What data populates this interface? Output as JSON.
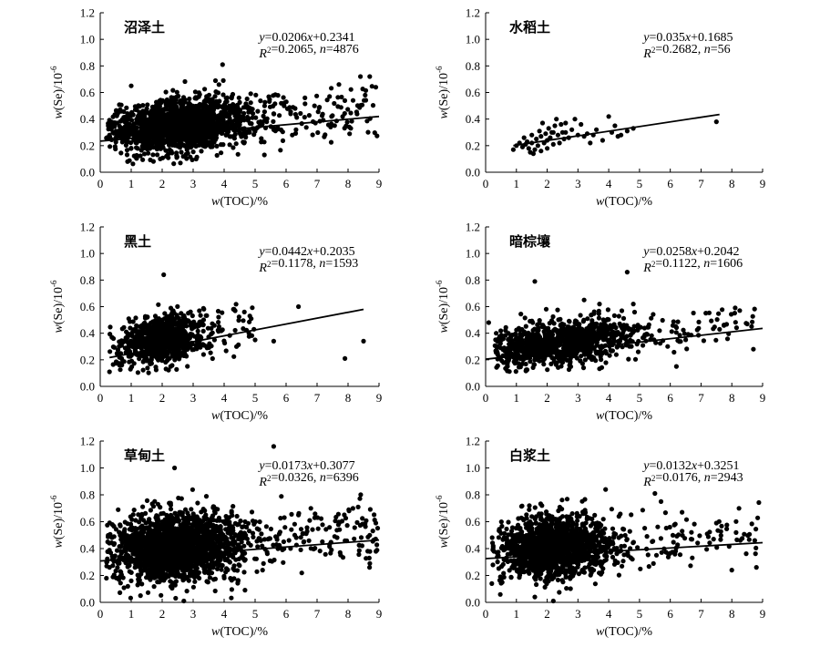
{
  "chart_data": [
    {
      "type": "scatter",
      "title": "沼泽土",
      "equation": "y=0.0206x+0.2341",
      "stats": "R²=0.2065, n=4876",
      "xlabel": "w(TOC)/%",
      "ylabel": "w(Se)/10⁻⁶",
      "xlim": [
        0,
        9
      ],
      "ylim": [
        0,
        1.2
      ],
      "xticks": [
        0,
        1,
        2,
        3,
        4,
        5,
        6,
        7,
        8,
        9
      ],
      "yticks": [
        0.0,
        0.2,
        0.4,
        0.6,
        0.8,
        1.0,
        1.2
      ],
      "fit": {
        "slope": 0.0206,
        "intercept": 0.2341,
        "x_start": 0,
        "x_end": 9
      },
      "n_points": 4876,
      "cloud": {
        "x_center": 2.5,
        "x_sd": 1.1,
        "x_min": 0.2,
        "x_max": 9.0,
        "y_resid_sd": 0.1,
        "y_min": 0.05,
        "y_max": 0.72,
        "shown": 1800
      },
      "points": [
        [
          3.95,
          0.81
        ],
        [
          1.0,
          0.65
        ],
        [
          8.4,
          0.72
        ],
        [
          8.7,
          0.72
        ],
        [
          0.9,
          0.23
        ],
        [
          0.3,
          0.28
        ],
        [
          6.2,
          0.28
        ],
        [
          5.3,
          0.13
        ]
      ]
    },
    {
      "type": "scatter",
      "title": "水稻土",
      "equation": "y=0.035x+0.1685",
      "stats": "R²=0.2682, n=56",
      "xlabel": "w(TOC)/%",
      "ylabel": "w(Se)/10⁻⁶",
      "xlim": [
        0,
        9
      ],
      "ylim": [
        0,
        1.2
      ],
      "xticks": [
        0,
        1,
        2,
        3,
        4,
        5,
        6,
        7,
        8,
        9
      ],
      "yticks": [
        0.0,
        0.2,
        0.4,
        0.6,
        0.8,
        1.0,
        1.2
      ],
      "fit": {
        "slope": 0.035,
        "intercept": 0.1685,
        "x_start": 0.9,
        "x_end": 7.6
      },
      "n_points": 56,
      "cloud": null,
      "points": [
        [
          0.9,
          0.17
        ],
        [
          1.0,
          0.2
        ],
        [
          1.1,
          0.22
        ],
        [
          1.2,
          0.19
        ],
        [
          1.3,
          0.21
        ],
        [
          1.4,
          0.18
        ],
        [
          1.45,
          0.15
        ],
        [
          1.5,
          0.22
        ],
        [
          1.55,
          0.14
        ],
        [
          1.6,
          0.17
        ],
        [
          1.65,
          0.25
        ],
        [
          1.7,
          0.2
        ],
        [
          1.75,
          0.31
        ],
        [
          1.8,
          0.27
        ],
        [
          1.85,
          0.37
        ],
        [
          1.9,
          0.22
        ],
        [
          1.95,
          0.29
        ],
        [
          2.0,
          0.18
        ],
        [
          2.05,
          0.33
        ],
        [
          2.1,
          0.26
        ],
        [
          2.15,
          0.3
        ],
        [
          2.2,
          0.21
        ],
        [
          2.25,
          0.35
        ],
        [
          2.3,
          0.4
        ],
        [
          2.35,
          0.28
        ],
        [
          2.4,
          0.22
        ],
        [
          2.45,
          0.36
        ],
        [
          2.5,
          0.3
        ],
        [
          2.55,
          0.25
        ],
        [
          2.6,
          0.37
        ],
        [
          2.7,
          0.26
        ],
        [
          2.8,
          0.32
        ],
        [
          2.9,
          0.4
        ],
        [
          3.0,
          0.28
        ],
        [
          3.1,
          0.36
        ],
        [
          3.2,
          0.27
        ],
        [
          3.3,
          0.29
        ],
        [
          3.4,
          0.22
        ],
        [
          3.6,
          0.32
        ],
        [
          3.8,
          0.24
        ],
        [
          4.0,
          0.42
        ],
        [
          4.1,
          0.3
        ],
        [
          4.2,
          0.35
        ],
        [
          4.4,
          0.28
        ],
        [
          4.6,
          0.31
        ],
        [
          4.8,
          0.33
        ],
        [
          1.25,
          0.26
        ],
        [
          1.5,
          0.28
        ],
        [
          2.0,
          0.24
        ],
        [
          2.2,
          0.3
        ],
        [
          1.8,
          0.16
        ],
        [
          2.6,
          0.3
        ],
        [
          3.5,
          0.28
        ],
        [
          4.3,
          0.27
        ],
        [
          1.35,
          0.23
        ],
        [
          7.5,
          0.38
        ]
      ]
    },
    {
      "type": "scatter",
      "title": "黑土",
      "equation": "y=0.0442x+0.2035",
      "stats": "R²=0.1178, n=1593",
      "xlabel": "w(TOC)/%",
      "ylabel": "w(Se)/10⁻⁶",
      "xlim": [
        0,
        9
      ],
      "ylim": [
        0,
        1.2
      ],
      "xticks": [
        0,
        1,
        2,
        3,
        4,
        5,
        6,
        7,
        8,
        9
      ],
      "yticks": [
        0.0,
        0.2,
        0.4,
        0.6,
        0.8,
        1.0,
        1.2
      ],
      "fit": {
        "slope": 0.0442,
        "intercept": 0.2035,
        "x_start": 0.3,
        "x_end": 8.5
      },
      "n_points": 1593,
      "cloud": {
        "x_center": 2.0,
        "x_sd": 0.65,
        "x_min": 0.3,
        "x_max": 5.0,
        "y_resid_sd": 0.09,
        "y_min": 0.1,
        "y_max": 0.62,
        "shown": 900
      },
      "points": [
        [
          2.05,
          0.84
        ],
        [
          6.4,
          0.6
        ],
        [
          8.5,
          0.34
        ],
        [
          7.9,
          0.21
        ],
        [
          5.6,
          0.34
        ],
        [
          5.0,
          0.35
        ],
        [
          4.8,
          0.4
        ],
        [
          0.3,
          0.11
        ],
        [
          4.3,
          0.58
        ],
        [
          4.4,
          0.3
        ]
      ]
    },
    {
      "type": "scatter",
      "title": "暗棕壤",
      "equation": "y=0.0258x+0.2042",
      "stats": "R²=0.1122, n=1606",
      "xlabel": "w(TOC)/%",
      "ylabel": "w(Se)/10⁻⁶",
      "xlim": [
        0,
        9
      ],
      "ylim": [
        0,
        1.2
      ],
      "xticks": [
        0,
        1,
        2,
        3,
        4,
        5,
        6,
        7,
        8,
        9
      ],
      "yticks": [
        0.0,
        0.2,
        0.4,
        0.6,
        0.8,
        1.0,
        1.2
      ],
      "fit": {
        "slope": 0.0258,
        "intercept": 0.2042,
        "x_start": 0,
        "x_end": 9
      },
      "n_points": 1606,
      "cloud": {
        "x_center": 2.4,
        "x_sd": 1.2,
        "x_min": 0.3,
        "x_max": 8.8,
        "y_resid_sd": 0.08,
        "y_min": 0.1,
        "y_max": 0.6,
        "shown": 1100
      },
      "points": [
        [
          4.6,
          0.86
        ],
        [
          1.6,
          0.79
        ],
        [
          0.1,
          0.48
        ],
        [
          8.7,
          0.28
        ],
        [
          8.5,
          0.47
        ],
        [
          3.2,
          0.65
        ],
        [
          4.8,
          0.62
        ],
        [
          6.2,
          0.15
        ],
        [
          0.8,
          0.34
        ],
        [
          3.7,
          0.62
        ]
      ]
    },
    {
      "type": "scatter",
      "title": "草甸土",
      "equation": "y=0.0173x+0.3077",
      "stats": "R²=0.0326, n=6396",
      "xlabel": "w(TOC)/%",
      "ylabel": "w(Se)/10⁻⁶",
      "xlim": [
        0,
        9
      ],
      "ylim": [
        0,
        1.2
      ],
      "xticks": [
        0,
        1,
        2,
        3,
        4,
        5,
        6,
        7,
        8,
        9
      ],
      "yticks": [
        0.0,
        0.2,
        0.4,
        0.6,
        0.8,
        1.0,
        1.2
      ],
      "fit": {
        "slope": 0.0173,
        "intercept": 0.3077,
        "x_start": 0,
        "x_end": 9
      },
      "n_points": 6396,
      "cloud": {
        "x_center": 2.4,
        "x_sd": 1.0,
        "x_min": 0.2,
        "x_max": 9.0,
        "y_resid_sd": 0.12,
        "y_min": 0.03,
        "y_max": 0.92,
        "shown": 2200
      },
      "points": [
        [
          5.6,
          1.16
        ],
        [
          2.4,
          1.0
        ],
        [
          0.2,
          0.18
        ],
        [
          1.3,
          0.05
        ],
        [
          2.7,
          0.01
        ],
        [
          6.4,
          0.65
        ],
        [
          6.8,
          0.7
        ],
        [
          8.7,
          0.5
        ],
        [
          8.9,
          0.38
        ],
        [
          0.3,
          0.26
        ],
        [
          0.6,
          0.17
        ],
        [
          1.0,
          0.16
        ]
      ]
    },
    {
      "type": "scatter",
      "title": "白浆土",
      "equation": "y=0.0132x+0.3251",
      "stats": "R²=0.0176, n=2943",
      "xlabel": "w(TOC)/%",
      "ylabel": "w(Se)/10⁻⁶",
      "xlim": [
        0,
        9
      ],
      "ylim": [
        0,
        1.2
      ],
      "xticks": [
        0,
        1,
        2,
        3,
        4,
        5,
        6,
        7,
        8,
        9
      ],
      "yticks": [
        0.0,
        0.2,
        0.4,
        0.6,
        0.8,
        1.0,
        1.2
      ],
      "fit": {
        "slope": 0.0132,
        "intercept": 0.3251,
        "x_start": 0,
        "x_end": 9
      },
      "n_points": 2943,
      "cloud": {
        "x_center": 2.2,
        "x_sd": 0.9,
        "x_min": 0.2,
        "x_max": 8.9,
        "y_resid_sd": 0.11,
        "y_min": 0.05,
        "y_max": 0.78,
        "shown": 1600
      },
      "points": [
        [
          5.5,
          0.81
        ],
        [
          3.9,
          0.84
        ],
        [
          8.8,
          0.26
        ],
        [
          8.0,
          0.24
        ],
        [
          7.2,
          0.51
        ],
        [
          7.5,
          0.59
        ],
        [
          5.7,
          0.75
        ],
        [
          1.6,
          0.04
        ],
        [
          2.2,
          0.01
        ],
        [
          0.2,
          0.14
        ]
      ]
    }
  ]
}
